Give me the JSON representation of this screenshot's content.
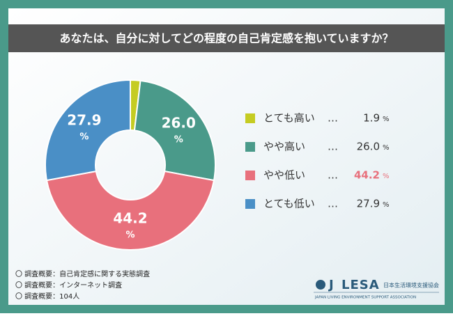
{
  "chart_data": {
    "type": "donut",
    "title": "あなたは、自分に対してどの程度の自己肯定感を抱いていますか？",
    "unit": "%",
    "separator": "…",
    "emphasized": "やや低い",
    "series": [
      {
        "name": "とても高い",
        "color": "#c5cc22",
        "values": [
          1.9
        ],
        "value_labels": [
          "1.9"
        ]
      },
      {
        "name": "やや高い",
        "color": "#4a9a8a",
        "values": [
          26.0
        ],
        "value_labels": [
          "26.0"
        ]
      },
      {
        "name": "やや低い",
        "color": "#e8707c",
        "values": [
          44.2
        ],
        "value_labels": [
          "44.2"
        ]
      },
      {
        "name": "とても低い",
        "color": "#4a8fc6",
        "values": [
          27.9
        ],
        "value_labels": [
          "27.9"
        ]
      }
    ]
  },
  "notes": [
    "〇 調査概要：自己肯定感に関する実態調査",
    "〇 調査概要：インターネット調査",
    "〇 調査概要：104人"
  ],
  "logo": {
    "mark": "J",
    "name": "LESA",
    "org": "日本生活環境支援協会",
    "tagline": "JAPAN LIVING ENVIRONMENT SUPPORT ASSOCIATION"
  }
}
